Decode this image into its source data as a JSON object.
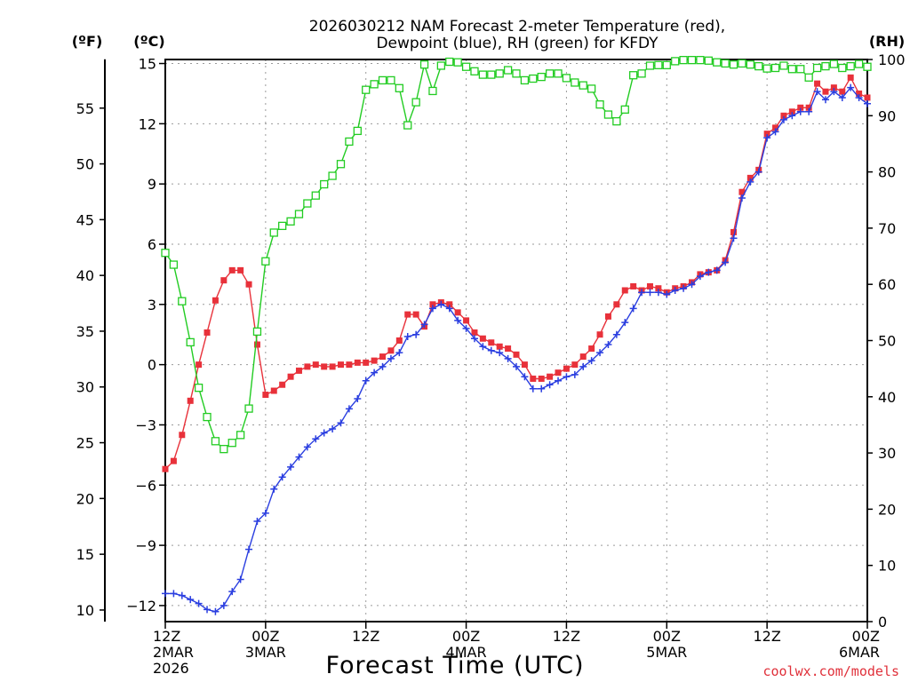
{
  "chart_data": {
    "type": "line",
    "title": "2026030212 NAM Forecast 2-meter Temperature (red),",
    "subtitle": "Dewpoint (blue), RH (green) for KFDY",
    "xlabel": "Forecast Time (UTC)",
    "credit": "coolwx.com/models",
    "units": {
      "fahrenheit": "(ºF)",
      "celsius": "(ºC)",
      "rh": "(RH)"
    },
    "x_range_hours": [
      0,
      84
    ],
    "x_ticks": [
      {
        "hour": 0,
        "l1": "12Z",
        "l2": "2MAR",
        "l3": "2026"
      },
      {
        "hour": 12,
        "l1": "00Z",
        "l2": "3MAR",
        "l3": ""
      },
      {
        "hour": 24,
        "l1": "12Z",
        "l2": "",
        "l3": ""
      },
      {
        "hour": 36,
        "l1": "00Z",
        "l2": "4MAR",
        "l3": ""
      },
      {
        "hour": 48,
        "l1": "12Z",
        "l2": "",
        "l3": ""
      },
      {
        "hour": 60,
        "l1": "00Z",
        "l2": "5MAR",
        "l3": ""
      },
      {
        "hour": 72,
        "l1": "12Z",
        "l2": "",
        "l3": ""
      },
      {
        "hour": 84,
        "l1": "00Z",
        "l2": "6MAR",
        "l3": ""
      }
    ],
    "celsius_axis": {
      "range": [
        -12.8,
        15.2
      ],
      "ticks": [
        "15",
        "12",
        "9",
        "6",
        "3",
        "0",
        "−3",
        "−6",
        "−9",
        "−12"
      ],
      "values": [
        15,
        12,
        9,
        6,
        3,
        0,
        -3,
        -6,
        -9,
        -12
      ]
    },
    "fahrenheit_axis": {
      "ticks": [
        "55",
        "50",
        "45",
        "40",
        "35",
        "30",
        "25",
        "20",
        "15",
        "10"
      ],
      "values": [
        55,
        50,
        45,
        40,
        35,
        30,
        25,
        20,
        15,
        10
      ]
    },
    "rh_axis": {
      "range": [
        0,
        100
      ],
      "ticks": [
        "100",
        "90",
        "80",
        "70",
        "60",
        "50",
        "40",
        "30",
        "20",
        "10",
        "0"
      ],
      "values": [
        100,
        90,
        80,
        70,
        60,
        50,
        40,
        30,
        20,
        10,
        0
      ]
    },
    "series": [
      {
        "name": "Temperature",
        "axis": "celsius",
        "color": "#e8313a",
        "marker": "filled-square",
        "points": [
          [
            0,
            -5.2
          ],
          [
            1,
            -4.8
          ],
          [
            2,
            -3.5
          ],
          [
            3,
            -1.8
          ],
          [
            4,
            0
          ],
          [
            5,
            1.6
          ],
          [
            6,
            3.2
          ],
          [
            7,
            4.2
          ],
          [
            8,
            4.7
          ],
          [
            9,
            4.7
          ],
          [
            10,
            4.0
          ],
          [
            11,
            1.0
          ],
          [
            12,
            -1.5
          ],
          [
            13,
            -1.3
          ],
          [
            14,
            -1.0
          ],
          [
            15,
            -0.6
          ],
          [
            16,
            -0.3
          ],
          [
            17,
            -0.1
          ],
          [
            18,
            0
          ],
          [
            19,
            -0.1
          ],
          [
            20,
            -0.1
          ],
          [
            21,
            0
          ],
          [
            22,
            0
          ],
          [
            23,
            0.1
          ],
          [
            24,
            0.1
          ],
          [
            25,
            0.2
          ],
          [
            26,
            0.4
          ],
          [
            27,
            0.7
          ],
          [
            28,
            1.2
          ],
          [
            29,
            2.5
          ],
          [
            30,
            2.5
          ],
          [
            31,
            1.9
          ],
          [
            32,
            3.0
          ],
          [
            33,
            3.1
          ],
          [
            34,
            3.0
          ],
          [
            35,
            2.6
          ],
          [
            36,
            2.2
          ],
          [
            37,
            1.6
          ],
          [
            38,
            1.3
          ],
          [
            39,
            1.1
          ],
          [
            40,
            0.9
          ],
          [
            41,
            0.8
          ],
          [
            42,
            0.5
          ],
          [
            43,
            0
          ],
          [
            44,
            -0.7
          ],
          [
            45,
            -0.7
          ],
          [
            46,
            -0.6
          ],
          [
            47,
            -0.4
          ],
          [
            48,
            -0.2
          ],
          [
            49,
            0
          ],
          [
            50,
            0.4
          ],
          [
            51,
            0.8
          ],
          [
            52,
            1.5
          ],
          [
            53,
            2.4
          ],
          [
            54,
            3.0
          ],
          [
            55,
            3.7
          ],
          [
            56,
            3.9
          ],
          [
            57,
            3.7
          ],
          [
            58,
            3.9
          ],
          [
            59,
            3.8
          ],
          [
            60,
            3.6
          ],
          [
            61,
            3.8
          ],
          [
            62,
            3.9
          ],
          [
            63,
            4.1
          ],
          [
            64,
            4.5
          ],
          [
            65,
            4.6
          ],
          [
            66,
            4.7
          ],
          [
            67,
            5.2
          ],
          [
            68,
            6.6
          ],
          [
            69,
            8.6
          ],
          [
            70,
            9.3
          ],
          [
            71,
            9.7
          ],
          [
            72,
            11.5
          ],
          [
            73,
            11.8
          ],
          [
            74,
            12.4
          ],
          [
            75,
            12.6
          ],
          [
            76,
            12.8
          ],
          [
            77,
            12.8
          ],
          [
            78,
            14.0
          ],
          [
            79,
            13.6
          ],
          [
            80,
            13.8
          ],
          [
            81,
            13.6
          ],
          [
            82,
            14.3
          ],
          [
            83,
            13.5
          ],
          [
            84,
            13.3
          ]
        ]
      },
      {
        "name": "Dewpoint",
        "axis": "celsius",
        "color": "#2a3ee0",
        "marker": "plus",
        "points": [
          [
            0,
            -11.4
          ],
          [
            1,
            -11.4
          ],
          [
            2,
            -11.5
          ],
          [
            3,
            -11.7
          ],
          [
            4,
            -11.9
          ],
          [
            5,
            -12.2
          ],
          [
            6,
            -12.3
          ],
          [
            7,
            -12.0
          ],
          [
            8,
            -11.3
          ],
          [
            9,
            -10.7
          ],
          [
            10,
            -9.2
          ],
          [
            11,
            -7.8
          ],
          [
            12,
            -7.4
          ],
          [
            13,
            -6.2
          ],
          [
            14,
            -5.6
          ],
          [
            15,
            -5.1
          ],
          [
            16,
            -4.6
          ],
          [
            17,
            -4.1
          ],
          [
            18,
            -3.7
          ],
          [
            19,
            -3.4
          ],
          [
            20,
            -3.2
          ],
          [
            21,
            -2.9
          ],
          [
            22,
            -2.2
          ],
          [
            23,
            -1.7
          ],
          [
            24,
            -0.8
          ],
          [
            25,
            -0.4
          ],
          [
            26,
            -0.1
          ],
          [
            27,
            0.3
          ],
          [
            28,
            0.6
          ],
          [
            29,
            1.4
          ],
          [
            30,
            1.5
          ],
          [
            31,
            2.0
          ],
          [
            32,
            2.8
          ],
          [
            33,
            3.0
          ],
          [
            34,
            2.8
          ],
          [
            35,
            2.2
          ],
          [
            36,
            1.8
          ],
          [
            37,
            1.3
          ],
          [
            38,
            0.9
          ],
          [
            39,
            0.7
          ],
          [
            40,
            0.6
          ],
          [
            41,
            0.3
          ],
          [
            42,
            -0.1
          ],
          [
            43,
            -0.6
          ],
          [
            44,
            -1.2
          ],
          [
            45,
            -1.2
          ],
          [
            46,
            -1.0
          ],
          [
            47,
            -0.8
          ],
          [
            48,
            -0.6
          ],
          [
            49,
            -0.5
          ],
          [
            50,
            -0.1
          ],
          [
            51,
            0.2
          ],
          [
            52,
            0.6
          ],
          [
            53,
            1.0
          ],
          [
            54,
            1.5
          ],
          [
            55,
            2.1
          ],
          [
            56,
            2.8
          ],
          [
            57,
            3.6
          ],
          [
            58,
            3.6
          ],
          [
            59,
            3.6
          ],
          [
            60,
            3.5
          ],
          [
            61,
            3.7
          ],
          [
            62,
            3.8
          ],
          [
            63,
            4.0
          ],
          [
            64,
            4.4
          ],
          [
            65,
            4.6
          ],
          [
            66,
            4.7
          ],
          [
            67,
            5.1
          ],
          [
            68,
            6.3
          ],
          [
            69,
            8.3
          ],
          [
            70,
            9.1
          ],
          [
            71,
            9.6
          ],
          [
            72,
            11.3
          ],
          [
            73,
            11.6
          ],
          [
            74,
            12.2
          ],
          [
            75,
            12.4
          ],
          [
            76,
            12.6
          ],
          [
            77,
            12.6
          ],
          [
            78,
            13.6
          ],
          [
            79,
            13.2
          ],
          [
            80,
            13.6
          ],
          [
            81,
            13.3
          ],
          [
            82,
            13.8
          ],
          [
            83,
            13.3
          ],
          [
            84,
            13.0
          ]
        ]
      },
      {
        "name": "RH",
        "axis": "rh",
        "color": "#22cc22",
        "marker": "open-square",
        "points": [
          [
            0,
            65.6
          ],
          [
            1,
            63.5
          ],
          [
            2,
            57
          ],
          [
            3,
            49.7
          ],
          [
            4,
            41.6
          ],
          [
            5,
            36.4
          ],
          [
            6,
            32.1
          ],
          [
            7,
            30.7
          ],
          [
            8,
            31.8
          ],
          [
            9,
            33.2
          ],
          [
            10,
            37.9
          ],
          [
            11,
            51.6
          ],
          [
            12,
            64.1
          ],
          [
            13,
            69.2
          ],
          [
            14,
            70.4
          ],
          [
            15,
            71.2
          ],
          [
            16,
            72.5
          ],
          [
            17,
            74.4
          ],
          [
            18,
            75.8
          ],
          [
            19,
            77.8
          ],
          [
            20,
            79.3
          ],
          [
            21,
            81.4
          ],
          [
            22,
            85.4
          ],
          [
            23,
            87.3
          ],
          [
            24,
            94.6
          ],
          [
            25,
            95.6
          ],
          [
            26,
            96.3
          ],
          [
            27,
            96.3
          ],
          [
            28,
            94.9
          ],
          [
            29,
            88.3
          ],
          [
            30,
            92.4
          ],
          [
            31,
            99.1
          ],
          [
            32,
            94.4
          ],
          [
            33,
            98.9
          ],
          [
            34,
            99.6
          ],
          [
            35,
            99.5
          ],
          [
            36,
            98.7
          ],
          [
            37,
            97.9
          ],
          [
            38,
            97.3
          ],
          [
            39,
            97.3
          ],
          [
            40,
            97.5
          ],
          [
            41,
            98.1
          ],
          [
            42,
            97.5
          ],
          [
            43,
            96.3
          ],
          [
            44,
            96.6
          ],
          [
            45,
            96.9
          ],
          [
            46,
            97.5
          ],
          [
            47,
            97.5
          ],
          [
            48,
            96.7
          ],
          [
            49,
            95.9
          ],
          [
            50,
            95.4
          ],
          [
            51,
            94.8
          ],
          [
            52,
            92
          ],
          [
            53,
            90.2
          ],
          [
            54,
            89
          ],
          [
            55,
            91.1
          ],
          [
            56,
            97.2
          ],
          [
            57,
            97.5
          ],
          [
            58,
            98.9
          ],
          [
            59,
            99
          ],
          [
            60,
            99
          ],
          [
            61,
            99.7
          ],
          [
            62,
            99.9
          ],
          [
            63,
            99.9
          ],
          [
            64,
            99.9
          ],
          [
            65,
            99.8
          ],
          [
            66,
            99.5
          ],
          [
            67,
            99.3
          ],
          [
            68,
            99.1
          ],
          [
            69,
            99.3
          ],
          [
            70,
            99.1
          ],
          [
            71,
            98.8
          ],
          [
            72,
            98.4
          ],
          [
            73,
            98.5
          ],
          [
            74,
            98.9
          ],
          [
            75,
            98.3
          ],
          [
            76,
            98.3
          ],
          [
            77,
            96.8
          ],
          [
            78,
            98.5
          ],
          [
            79,
            98.8
          ],
          [
            80,
            99.2
          ],
          [
            81,
            98.5
          ],
          [
            82,
            98.8
          ],
          [
            83,
            99.2
          ],
          [
            84,
            98.7
          ]
        ]
      }
    ]
  }
}
